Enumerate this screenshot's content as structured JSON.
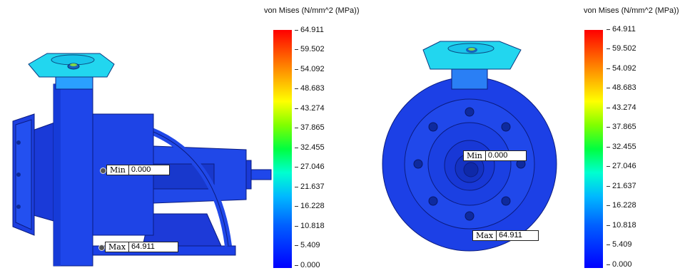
{
  "legend": {
    "title": "von Mises (N/mm^2 (MPa))",
    "ticks": [
      "64.911",
      "59.502",
      "54.092",
      "48.683",
      "43.274",
      "37.865",
      "32.455",
      "27.046",
      "21.637",
      "16.228",
      "10.818",
      "5.409",
      "0.000"
    ]
  },
  "views": [
    {
      "min_key": "Min",
      "min_value": "0.000",
      "max_key": "Max",
      "max_value": "64.911"
    },
    {
      "min_key": "Min",
      "min_value": "0.000",
      "max_key": "Max",
      "max_value": "64.911"
    }
  ],
  "colors": {
    "body_blue": "#1a3fe0",
    "dark_blue": "#0e1f9a",
    "cyan": "#18d8f0",
    "max_red": "#ff0000"
  }
}
